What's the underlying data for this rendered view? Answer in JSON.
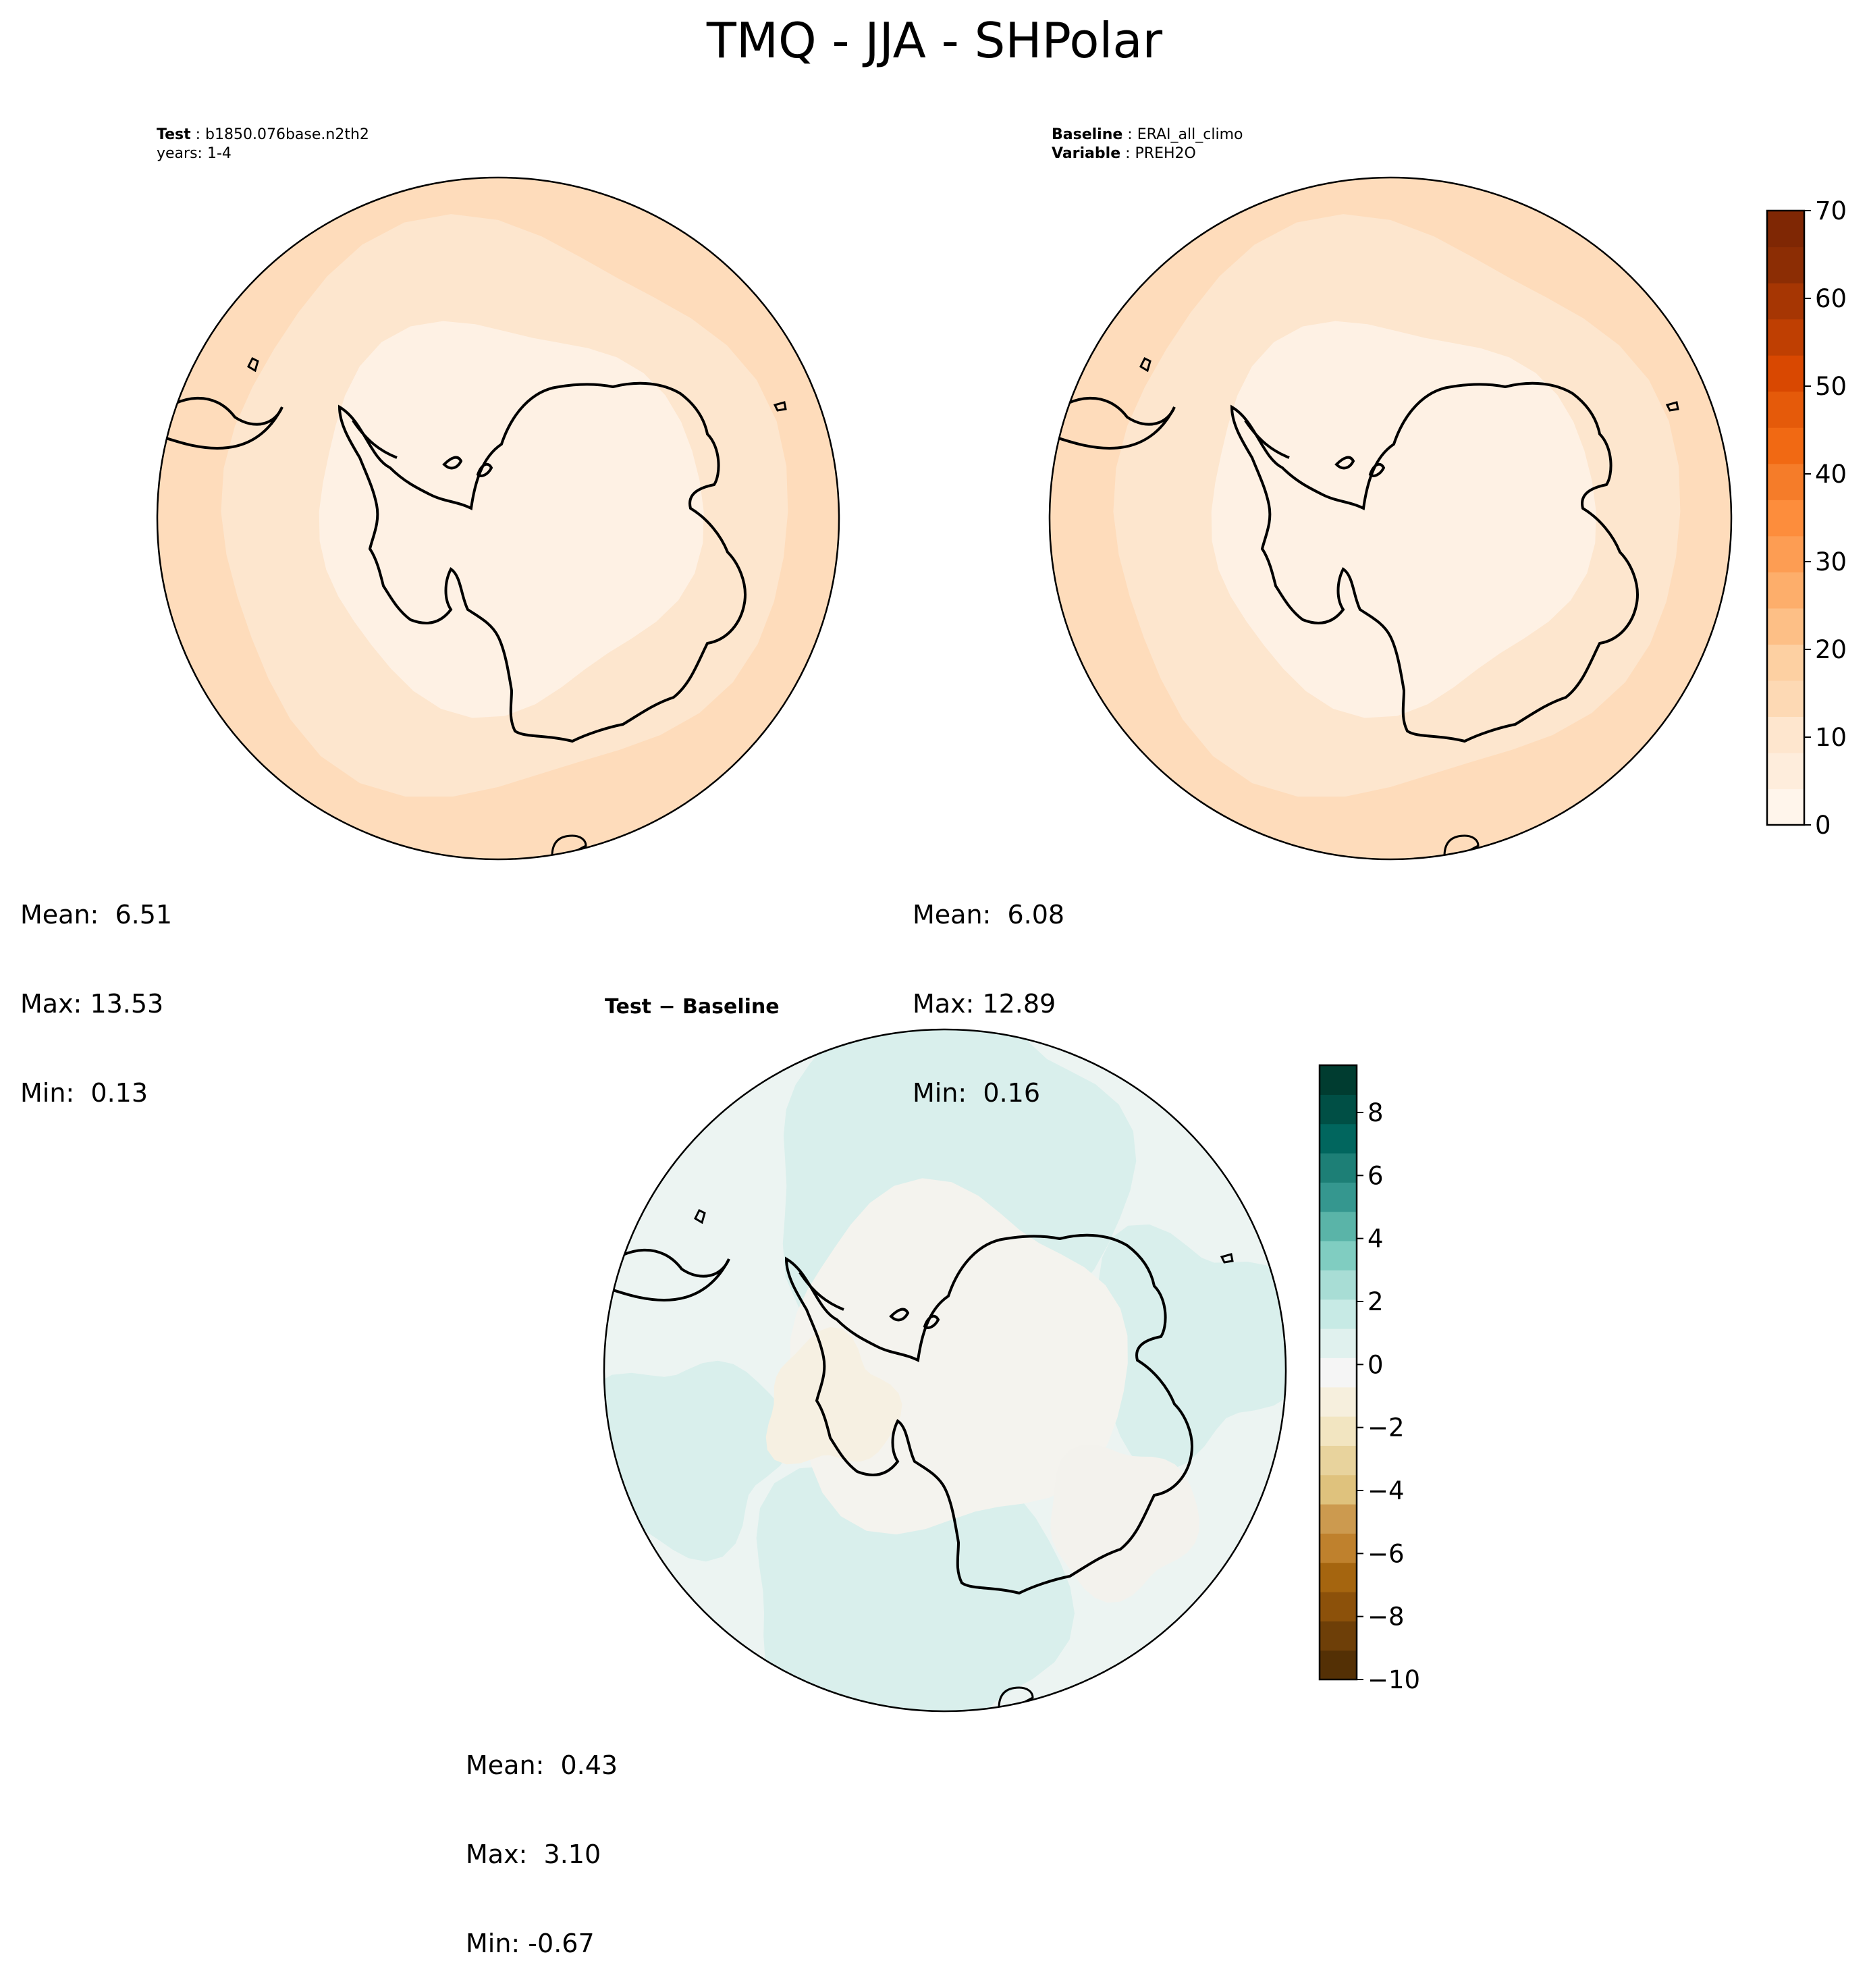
{
  "figure": {
    "title": "TMQ - JJA - SHPolar"
  },
  "panels": {
    "test": {
      "label_key": "Test",
      "label_value": "b1850.076base.n2th2",
      "years": "years: 1-4",
      "stats": {
        "mean": "Mean:  6.51",
        "max": "Max: 13.53",
        "min": "Min:  0.13"
      },
      "levels_fill": [
        "#fedcbb",
        "#fde6ce",
        "#fef1e4"
      ]
    },
    "baseline": {
      "label_key": "Baseline",
      "label_value": "ERAI_all_climo",
      "variable_key": "Variable",
      "variable_value": "PREH2O",
      "stats": {
        "mean": "Mean:  6.08",
        "max": "Max: 12.89",
        "min": "Min:  0.16"
      },
      "levels_fill": [
        "#fedcbb",
        "#fde6ce",
        "#fef1e4"
      ]
    },
    "difference": {
      "title": "Test − Baseline",
      "stats": {
        "mean": "Mean:  0.43",
        "max": "Max:  3.10",
        "min": "Min: -0.67"
      }
    }
  },
  "colorbars": {
    "absolute": {
      "ticks": [
        "0",
        "10",
        "20",
        "30",
        "40",
        "50",
        "60",
        "70"
      ],
      "values": [
        0,
        10,
        20,
        30,
        40,
        50,
        60,
        70
      ],
      "range": [
        0,
        70
      ],
      "colors": [
        "#fff5eb",
        "#feeddc",
        "#fee6ce",
        "#fdd9b4",
        "#fdd0a2",
        "#fdbf86",
        "#fdae6b",
        "#fd9d53",
        "#fd8d3c",
        "#f57c29",
        "#f16913",
        "#e55a0a",
        "#d94801",
        "#bf3f02",
        "#a63603",
        "#8c2d04",
        "#7f2704"
      ]
    },
    "difference": {
      "ticks": [
        "8",
        "6",
        "4",
        "2",
        "0",
        "−2",
        "−4",
        "−6",
        "−8",
        "−10"
      ],
      "values": [
        8,
        6,
        4,
        2,
        0,
        -2,
        -4,
        -6,
        -8,
        -10
      ],
      "range": [
        -10,
        9.5
      ],
      "colors": [
        "#543005",
        "#6e3f08",
        "#8c510a",
        "#a5650f",
        "#bf812d",
        "#cc9a4f",
        "#dfc27d",
        "#e8d39d",
        "#f2e5c1",
        "#f6efdd",
        "#f5f5f5",
        "#e0f1ee",
        "#c7eae5",
        "#a8ddd5",
        "#80cdc1",
        "#5ab4a8",
        "#35978f",
        "#1d7f76",
        "#01665e",
        "#004f45",
        "#003c30"
      ]
    }
  }
}
